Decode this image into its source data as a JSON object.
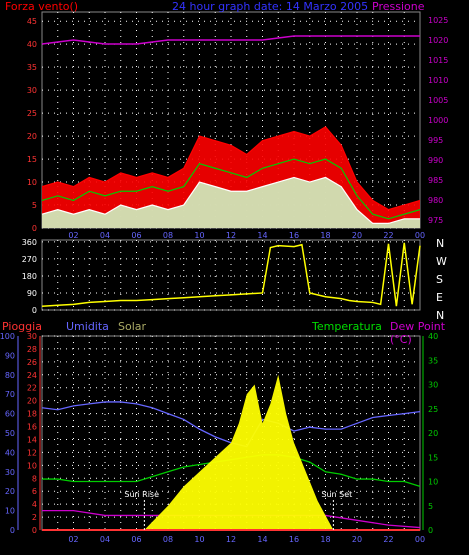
{
  "colors": {
    "background": "#000000",
    "grid": "#ffffff",
    "wind": "#ff0000",
    "wind_avg": "#00cc00",
    "gust": "#ffffff",
    "pressure": "#cc00cc",
    "direction": "#ffff00",
    "rain": "#ff3333",
    "humidity": "#6666ff",
    "solar": "#ffff00",
    "temperature": "#00cc00",
    "dewpoint": "#cc00cc",
    "title": "#3333ff"
  },
  "top_panel": {
    "left_label": "Forza vento()",
    "title": "24 hour graph date: 14 Marzo 2005",
    "right_label": "Pressione"
  },
  "wind_dir_panel": {
    "compass": [
      "N",
      "W",
      "S",
      "E",
      "N"
    ]
  },
  "bottom_panel": {
    "labels": {
      "rain": "Pioggia",
      "humidity": "Umidita",
      "solar": "Solar",
      "temperature": "Temperatura",
      "dewpoint": "Dew Point (°C)"
    },
    "annotations": {
      "sunrise": "Sun Rise",
      "sunset": "Sun Set"
    }
  },
  "chart_data": [
    {
      "type": "line",
      "name": "wind-pressure",
      "x_hours": [
        0,
        2,
        4,
        6,
        8,
        10,
        12,
        14,
        16,
        18,
        20,
        22,
        24
      ],
      "x_tick_labels": [
        "02",
        "04",
        "06",
        "08",
        "10",
        "12",
        "14",
        "16",
        "18",
        "20",
        "22",
        "00"
      ],
      "y_left_ticks": [
        0,
        5,
        10,
        15,
        20,
        25,
        30,
        35,
        40,
        45
      ],
      "y_right_ticks": [
        975,
        980,
        985,
        990,
        995,
        1000,
        1005,
        1010,
        1015,
        1020,
        1025
      ],
      "ylim_left": [
        0,
        47
      ],
      "ylim_right": [
        973,
        1027
      ],
      "grid": true,
      "series": [
        {
          "key": "wind",
          "x": [
            0,
            1,
            2,
            3,
            4,
            5,
            6,
            7,
            8,
            9,
            10,
            11,
            12,
            13,
            14,
            15,
            16,
            17,
            18,
            19,
            20,
            21,
            22,
            23,
            24
          ],
          "values": [
            9,
            10,
            9,
            11,
            10,
            12,
            11,
            12,
            11,
            13,
            20,
            19,
            18,
            16,
            19,
            20,
            21,
            20,
            22,
            18,
            10,
            6,
            4,
            5,
            6
          ]
        },
        {
          "key": "wind_avg",
          "x": [
            0,
            1,
            2,
            3,
            4,
            5,
            6,
            7,
            8,
            9,
            10,
            11,
            12,
            13,
            14,
            15,
            16,
            17,
            18,
            19,
            20,
            21,
            22,
            23,
            24
          ],
          "values": [
            6,
            7,
            6,
            8,
            7,
            8,
            8,
            9,
            8,
            9,
            14,
            13,
            12,
            11,
            13,
            14,
            15,
            14,
            15,
            13,
            7,
            3,
            2,
            3,
            4
          ]
        },
        {
          "key": "gust",
          "x": [
            0,
            1,
            2,
            3,
            4,
            5,
            6,
            7,
            8,
            9,
            10,
            11,
            12,
            13,
            14,
            15,
            16,
            17,
            18,
            19,
            20,
            21,
            22,
            23,
            24
          ],
          "values": [
            3,
            4,
            3,
            4,
            3,
            5,
            4,
            5,
            4,
            5,
            10,
            9,
            8,
            8,
            9,
            10,
            11,
            10,
            11,
            9,
            4,
            1,
            1,
            2,
            2
          ]
        },
        {
          "key": "pressure",
          "x": [
            0,
            2,
            4,
            6,
            8,
            10,
            12,
            14,
            16,
            18,
            20,
            22,
            24
          ],
          "values": [
            1019,
            1020,
            1019,
            1019,
            1020,
            1020,
            1020,
            1020,
            1021,
            1021,
            1021,
            1021,
            1021
          ]
        }
      ]
    },
    {
      "type": "line",
      "name": "wind-direction",
      "y_ticks": [
        0,
        90,
        180,
        270,
        360
      ],
      "ylim": [
        0,
        370
      ],
      "series": [
        {
          "key": "direction",
          "x": [
            0,
            1,
            2,
            3,
            4,
            5,
            6,
            7,
            8,
            9,
            10,
            11,
            12,
            13,
            14,
            14.5,
            15,
            16,
            16.5,
            17,
            18,
            19,
            19.5,
            20,
            21,
            21.5,
            22,
            22.5,
            23,
            23.5,
            24
          ],
          "values": [
            20,
            25,
            30,
            40,
            45,
            50,
            50,
            55,
            60,
            65,
            70,
            75,
            80,
            85,
            90,
            330,
            340,
            335,
            345,
            90,
            70,
            60,
            50,
            45,
            40,
            30,
            350,
            20,
            355,
            30,
            340
          ]
        }
      ]
    },
    {
      "type": "line",
      "name": "temp-humidity-solar",
      "y_rain_ticks": [
        0,
        2,
        4,
        6,
        8,
        10,
        12,
        14,
        16,
        18,
        20,
        22,
        24,
        26,
        28,
        30
      ],
      "y_hum_ticks": [
        0,
        10,
        20,
        30,
        40,
        50,
        60,
        70,
        80,
        90,
        100
      ],
      "y_temp_ticks": [
        0,
        5,
        10,
        15,
        20,
        25,
        30,
        35,
        40
      ],
      "ylim_hum": [
        0,
        100
      ],
      "ylim_temp": [
        0,
        40
      ],
      "series": [
        {
          "key": "humidity",
          "x": [
            0,
            1,
            2,
            3,
            4,
            5,
            6,
            7,
            8,
            9,
            10,
            11,
            12,
            13,
            14,
            15,
            16,
            17,
            18,
            19,
            20,
            21,
            22,
            23,
            24
          ],
          "values": [
            63,
            62,
            64,
            65,
            66,
            66,
            65,
            63,
            60,
            57,
            52,
            48,
            45,
            43,
            57,
            55,
            51,
            53,
            52,
            52,
            55,
            58,
            59,
            60,
            61
          ]
        },
        {
          "key": "temperature",
          "x": [
            0,
            1,
            2,
            3,
            4,
            5,
            6,
            7,
            8,
            9,
            10,
            11,
            12,
            13,
            14,
            15,
            16,
            17,
            18,
            19,
            20,
            21,
            22,
            23,
            24
          ],
          "values": [
            10.5,
            10.5,
            10,
            10,
            10,
            10,
            10,
            11,
            12,
            13,
            13.5,
            14,
            14.5,
            15,
            15.5,
            15.5,
            15,
            14,
            12,
            11.5,
            10.5,
            10.5,
            10,
            10,
            9
          ]
        },
        {
          "key": "dewpoint",
          "x": [
            0,
            2,
            4,
            6,
            8,
            10,
            12,
            14,
            16,
            18,
            20,
            22,
            24
          ],
          "values": [
            4,
            4,
            3,
            3,
            3,
            3,
            3,
            3,
            3,
            3,
            2,
            1,
            0.5
          ]
        },
        {
          "key": "solar",
          "x": [
            6.5,
            8,
            9,
            10,
            11,
            12,
            12.5,
            13,
            13.5,
            14,
            14.5,
            15,
            15.5,
            16,
            16.5,
            17,
            17.5,
            18,
            18.5
          ],
          "values": [
            0,
            5,
            9,
            12,
            15,
            18,
            22,
            28,
            30,
            22,
            26,
            32,
            24,
            18,
            14,
            10,
            6,
            3,
            0
          ]
        },
        {
          "key": "rain",
          "x": [
            0,
            24
          ],
          "values": [
            0,
            0
          ]
        }
      ]
    }
  ]
}
